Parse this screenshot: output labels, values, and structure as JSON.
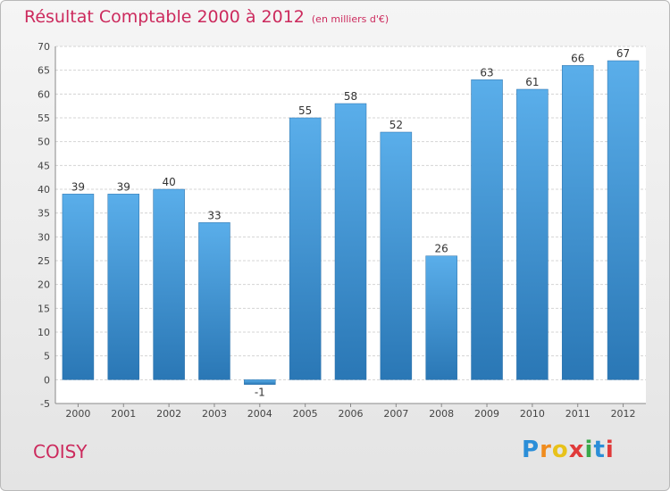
{
  "title": "Résultat Comptable 2000 à 2012",
  "subtitle": "(en milliers d'€)",
  "city": "COISY",
  "logo": {
    "letters": [
      "P",
      "r",
      "o",
      "x",
      "i",
      "t",
      "i"
    ],
    "colors": [
      "#2b8ed8",
      "#f08c1e",
      "#e8c21a",
      "#e03a3a",
      "#3aa84a",
      "#2b8ed8",
      "#e03a3a"
    ]
  },
  "colors": {
    "bar_top": "#5aaeea",
    "bar_bottom": "#2a77b5",
    "accent": "#cc2a5d"
  },
  "chart_data": {
    "type": "bar",
    "title": "Résultat Comptable 2000 à 2012",
    "subtitle": "(en milliers d'€)",
    "categories": [
      "2000",
      "2001",
      "2002",
      "2003",
      "2004",
      "2005",
      "2006",
      "2007",
      "2008",
      "2009",
      "2010",
      "2011",
      "2012"
    ],
    "values": [
      39,
      39,
      40,
      33,
      -1,
      55,
      58,
      52,
      26,
      63,
      61,
      66,
      67
    ],
    "ylim": [
      -5,
      70
    ],
    "yticks": [
      -5,
      0,
      5,
      10,
      15,
      20,
      25,
      30,
      35,
      40,
      45,
      50,
      55,
      60,
      65,
      70
    ],
    "grid": true
  }
}
